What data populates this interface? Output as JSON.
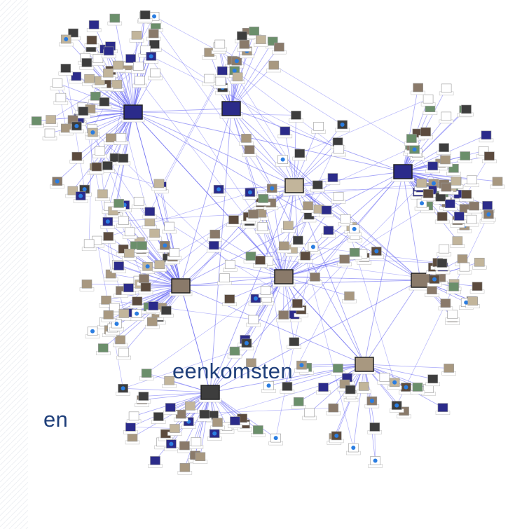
{
  "slide": {
    "text_lines": [
      "eenkomsten",
      "en"
    ]
  }
}
